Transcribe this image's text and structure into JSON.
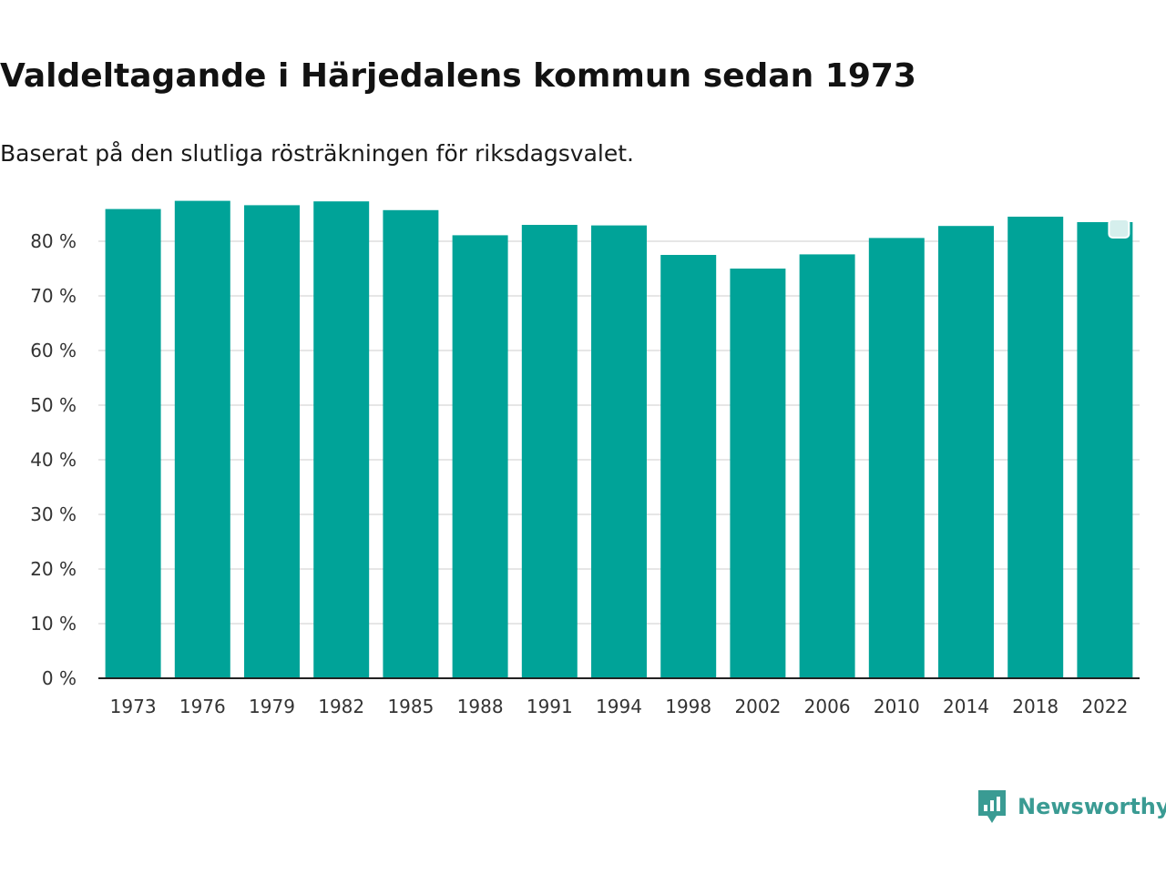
{
  "header": {
    "title": "Valdeltagande i Härjedalens kommun sedan 1973",
    "subtitle": "Baserat på den slutliga rösträkningen för riksdagsvalet."
  },
  "colors": {
    "bar": "#00a398",
    "gridline": "#dddddd",
    "axis": "#222222",
    "text": "#333333",
    "brand": "#3a9b93"
  },
  "chart_data": {
    "type": "bar",
    "title": "Valdeltagande i Härjedalens kommun sedan 1973",
    "subtitle": "Baserat på den slutliga rösträkningen för riksdagsvalet.",
    "xlabel": "",
    "ylabel": "",
    "unit_suffix": " %",
    "categories": [
      "1973",
      "1976",
      "1979",
      "1982",
      "1985",
      "1988",
      "1991",
      "1994",
      "1998",
      "2002",
      "2006",
      "2010",
      "2014",
      "2018",
      "2022"
    ],
    "values": [
      85.9,
      87.4,
      86.6,
      87.3,
      85.7,
      81.1,
      83.0,
      82.9,
      77.5,
      75.0,
      77.6,
      80.6,
      82.8,
      84.5,
      83.5
    ],
    "ylim": [
      0,
      90
    ],
    "yticks": [
      0,
      10,
      20,
      30,
      40,
      50,
      60,
      70,
      80
    ],
    "grid": true,
    "legend": "none",
    "highlight_marker": {
      "category": "2022",
      "icon": "square-marker-icon"
    }
  },
  "footer": {
    "brand_name": "Newsworthy",
    "brand_icon": "newsworthy-logo-icon"
  }
}
